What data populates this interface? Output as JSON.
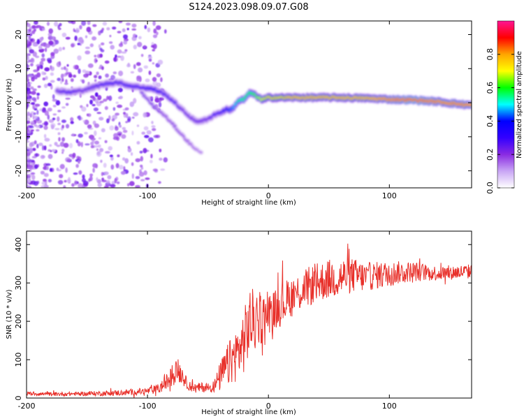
{
  "title": "S124.2023.098.09.07.G08",
  "chart_data": [
    {
      "type": "heatmap",
      "xlabel": "Height of straight line (km)",
      "ylabel": "Frequency (Hz)",
      "xlim": [
        -200,
        168
      ],
      "ylim": [
        -25,
        24
      ],
      "x_ticks": [
        -200,
        -100,
        0,
        100
      ],
      "y_ticks": [
        -20,
        -10,
        0,
        10,
        20
      ],
      "colorbar": {
        "label": "Normalized spectral amplitude",
        "range": [
          0,
          1
        ],
        "ticks": [
          "0.0",
          "0.2",
          "0.4",
          "0.6",
          "0.8"
        ],
        "colors": [
          "#ffffff",
          "#c9a6f5",
          "#8a2be2",
          "#3300ff",
          "#0000ff",
          "#00ffff",
          "#00ff00",
          "#ffff00",
          "#ffa500",
          "#ff0000",
          "#ff1493"
        ]
      },
      "main_ridge": {
        "note": "frequency (Hz) of peak spectral amplitude vs height (km)",
        "x": [
          -175,
          -165,
          -155,
          -135,
          -125,
          -115,
          -105,
          -95,
          -88,
          -80,
          -70,
          -60,
          -50,
          -45,
          -40,
          -35,
          -30,
          -25,
          -20,
          -15,
          -10,
          -5,
          0,
          10,
          20,
          40,
          60,
          80,
          100,
          120,
          140,
          160,
          168
        ],
        "freq": [
          3.5,
          3.0,
          3.5,
          5.5,
          6.0,
          5.0,
          4.5,
          4.0,
          3.0,
          1.0,
          -2.5,
          -5.5,
          -5.0,
          -3.5,
          -3.0,
          -2.0,
          -2.0,
          0.5,
          1.0,
          3.0,
          2.0,
          0.8,
          1.5,
          1.5,
          1.5,
          1.5,
          1.5,
          1.3,
          1.0,
          0.8,
          0.3,
          -0.5,
          -0.7
        ],
        "amplitude": [
          0.25,
          0.3,
          0.25,
          0.3,
          0.3,
          0.3,
          0.3,
          0.35,
          0.3,
          0.3,
          0.25,
          0.25,
          0.25,
          0.3,
          0.3,
          0.4,
          0.45,
          0.55,
          0.6,
          0.6,
          0.65,
          0.7,
          0.75,
          0.75,
          0.8,
          0.8,
          0.8,
          0.8,
          0.85,
          0.9,
          0.85,
          0.85,
          0.85
        ]
      },
      "secondary_ridge": {
        "x": [
          -105,
          -95,
          -85,
          -75,
          -65,
          -55
        ],
        "freq": [
          3,
          -1,
          -4,
          -8,
          -12,
          -15
        ],
        "amplitude": [
          0.25,
          0.25,
          0.22,
          0.22,
          0.2,
          0.15
        ]
      }
    },
    {
      "type": "line",
      "xlabel": "Height of straight line (km)",
      "ylabel": "SNR (10 * v/v)",
      "xlim": [
        -200,
        168
      ],
      "ylim": [
        0,
        435
      ],
      "x_ticks": [
        -200,
        -100,
        0,
        100
      ],
      "y_ticks": [
        0,
        100,
        200,
        300,
        400
      ],
      "series": [
        {
          "color": "#e8302a",
          "x": [
            -200,
            -180,
            -160,
            -140,
            -120,
            -100,
            -90,
            -85,
            -80,
            -76,
            -72,
            -68,
            -64,
            -60,
            -55,
            -50,
            -45,
            -40,
            -35,
            -30,
            -25,
            -20,
            -15,
            -10,
            -5,
            0,
            5,
            10,
            20,
            30,
            40,
            50,
            60,
            70,
            80,
            100,
            120,
            140,
            168
          ],
          "values": [
            12,
            10,
            11,
            12,
            14,
            18,
            25,
            40,
            55,
            75,
            65,
            40,
            30,
            25,
            28,
            28,
            30,
            55,
            80,
            100,
            120,
            150,
            200,
            200,
            210,
            220,
            230,
            245,
            265,
            285,
            300,
            310,
            315,
            320,
            315,
            325,
            330,
            325,
            330
          ],
          "noise": [
            4,
            4,
            4,
            5,
            6,
            7,
            10,
            15,
            22,
            25,
            22,
            12,
            10,
            10,
            10,
            10,
            12,
            30,
            40,
            50,
            55,
            65,
            70,
            60,
            50,
            40,
            40,
            45,
            40,
            40,
            40,
            40,
            40,
            35,
            30,
            25,
            20,
            15,
            15
          ]
        }
      ]
    }
  ]
}
